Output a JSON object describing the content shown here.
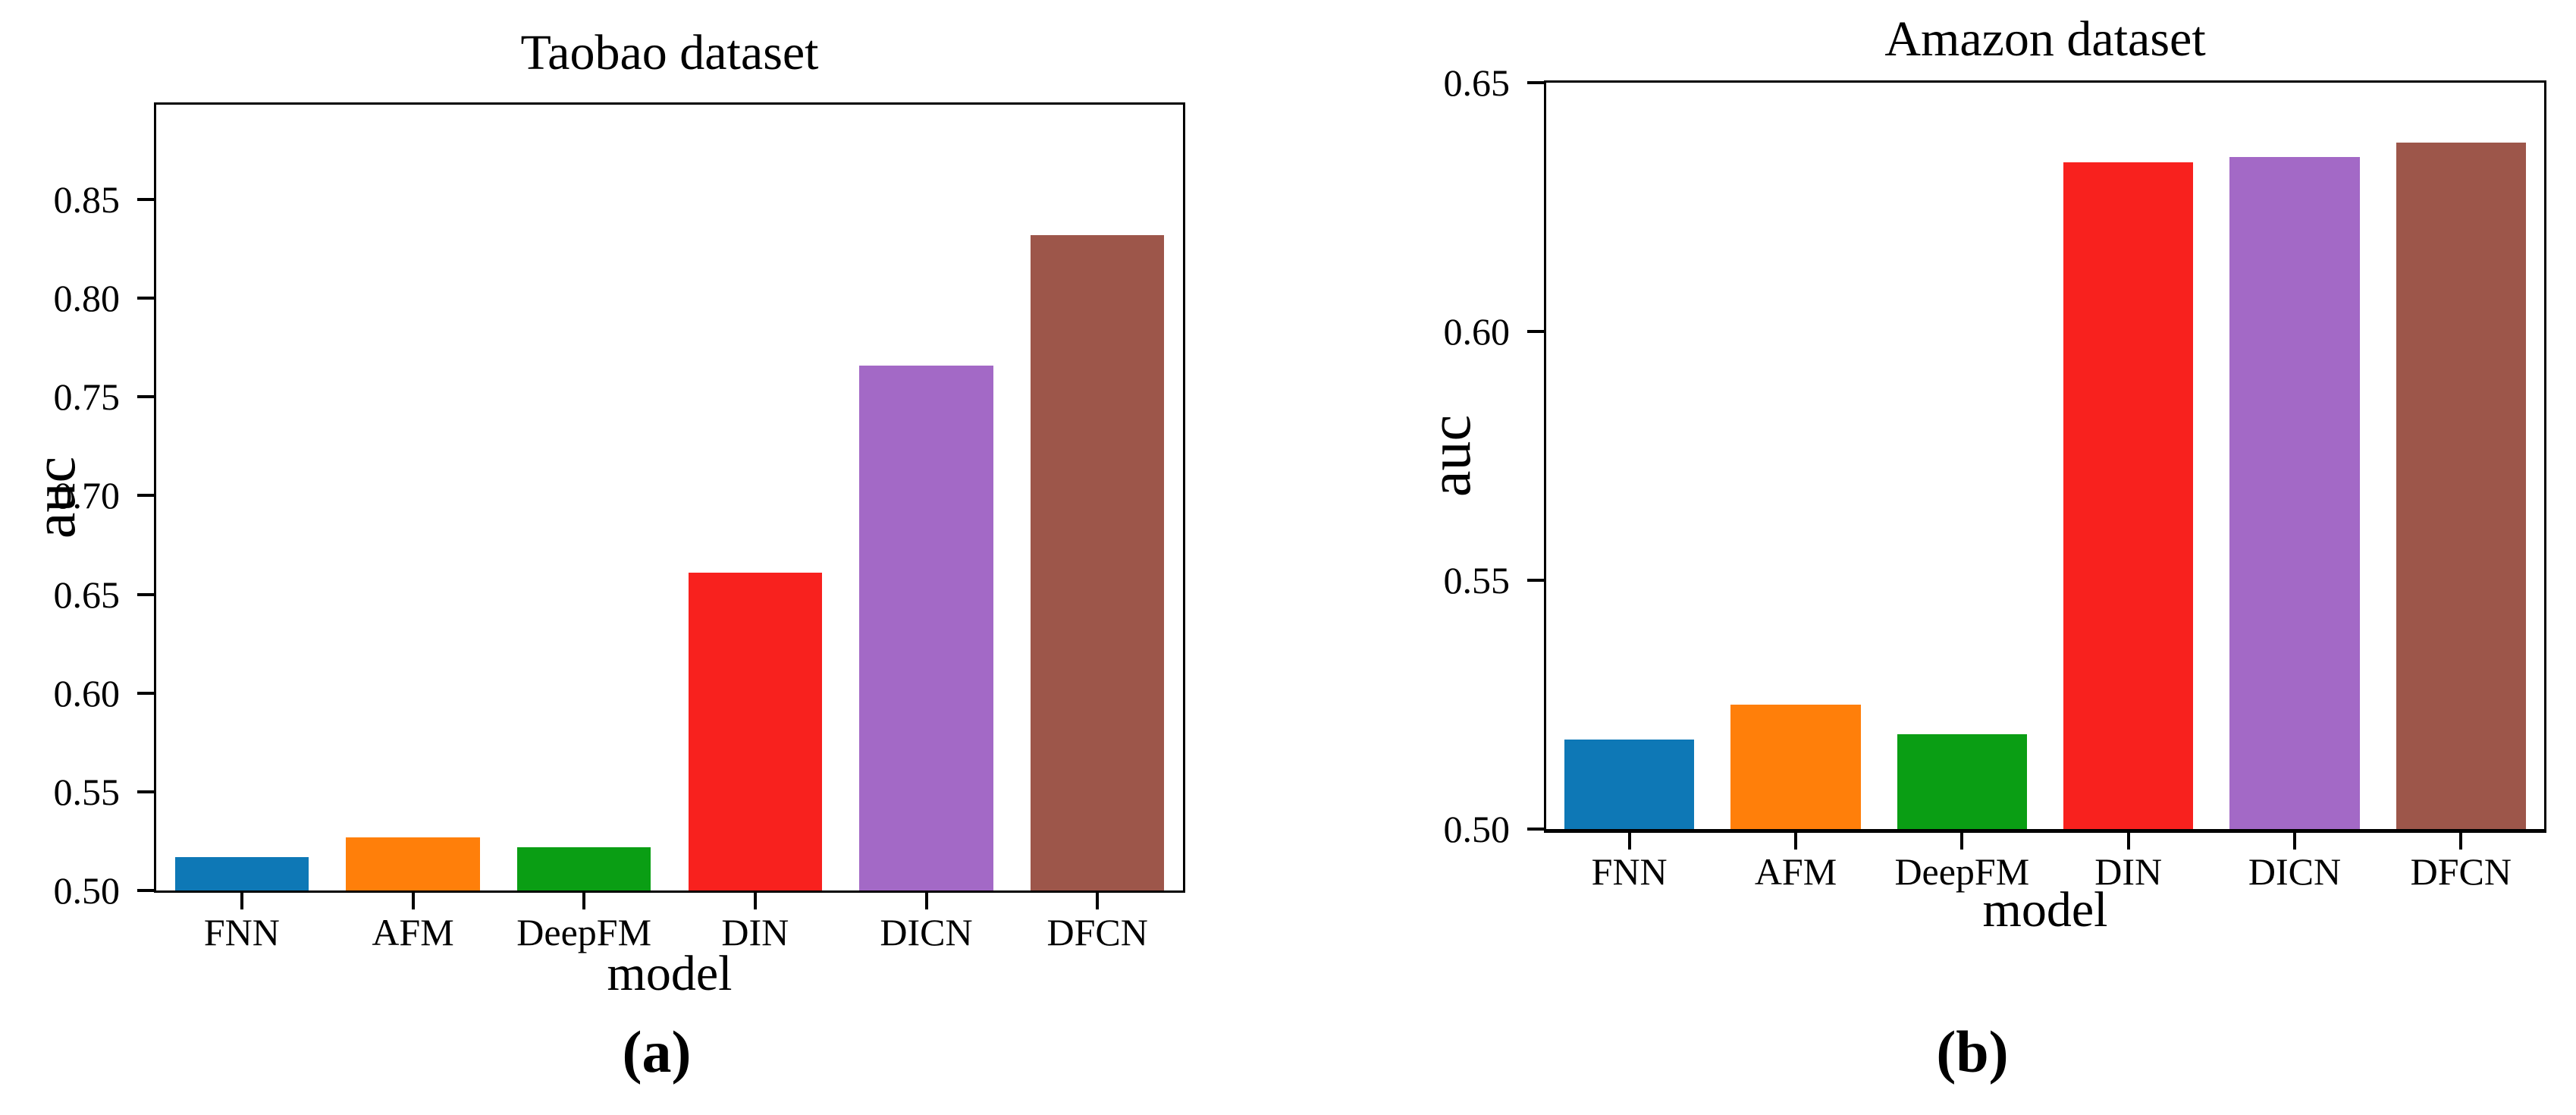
{
  "figure": {
    "background": "#ffffff"
  },
  "colors": {
    "axis": "#000000",
    "bars": [
      "#0e78b6",
      "#ff7f0a",
      "#0a9e14",
      "#f8211e",
      "#a369c6",
      "#9d564a"
    ]
  },
  "chart_data": [
    {
      "id": "taobao",
      "type": "bar",
      "title": "Taobao dataset",
      "xlabel": "model",
      "ylabel": "auc",
      "caption": "(a)",
      "categories": [
        "FNN",
        "AFM",
        "DeepFM",
        "DIN",
        "DICN",
        "DFCN"
      ],
      "values": [
        0.517,
        0.527,
        0.522,
        0.661,
        0.766,
        0.832
      ],
      "ylim": [
        0.5,
        0.898
      ],
      "yticks": [
        0.5,
        0.55,
        0.6,
        0.65,
        0.7,
        0.75,
        0.8,
        0.85
      ],
      "ytick_labels": [
        "0.50",
        "0.55",
        "0.60",
        "0.65",
        "0.70",
        "0.75",
        "0.80",
        "0.85"
      ],
      "grid": false,
      "legend": "none",
      "bar_colors": [
        "#0e78b6",
        "#ff7f0a",
        "#0a9e14",
        "#f8211e",
        "#a369c6",
        "#9d564a"
      ]
    },
    {
      "id": "amazon",
      "type": "bar",
      "title": "Amazon dataset",
      "xlabel": "model",
      "ylabel": "auc",
      "caption": "(b)",
      "categories": [
        "FNN",
        "AFM",
        "DeepFM",
        "DIN",
        "DICN",
        "DFCN"
      ],
      "values": [
        0.518,
        0.525,
        0.519,
        0.634,
        0.635,
        0.638
      ],
      "ylim": [
        0.5,
        0.65
      ],
      "yticks": [
        0.5,
        0.55,
        0.6,
        0.65
      ],
      "ytick_labels": [
        "0.50",
        "0.55",
        "0.60",
        "0.65"
      ],
      "grid": false,
      "legend": "none",
      "bar_colors": [
        "#0e78b6",
        "#ff7f0a",
        "#0a9e14",
        "#f8211e",
        "#a369c6",
        "#9d564a"
      ]
    }
  ]
}
